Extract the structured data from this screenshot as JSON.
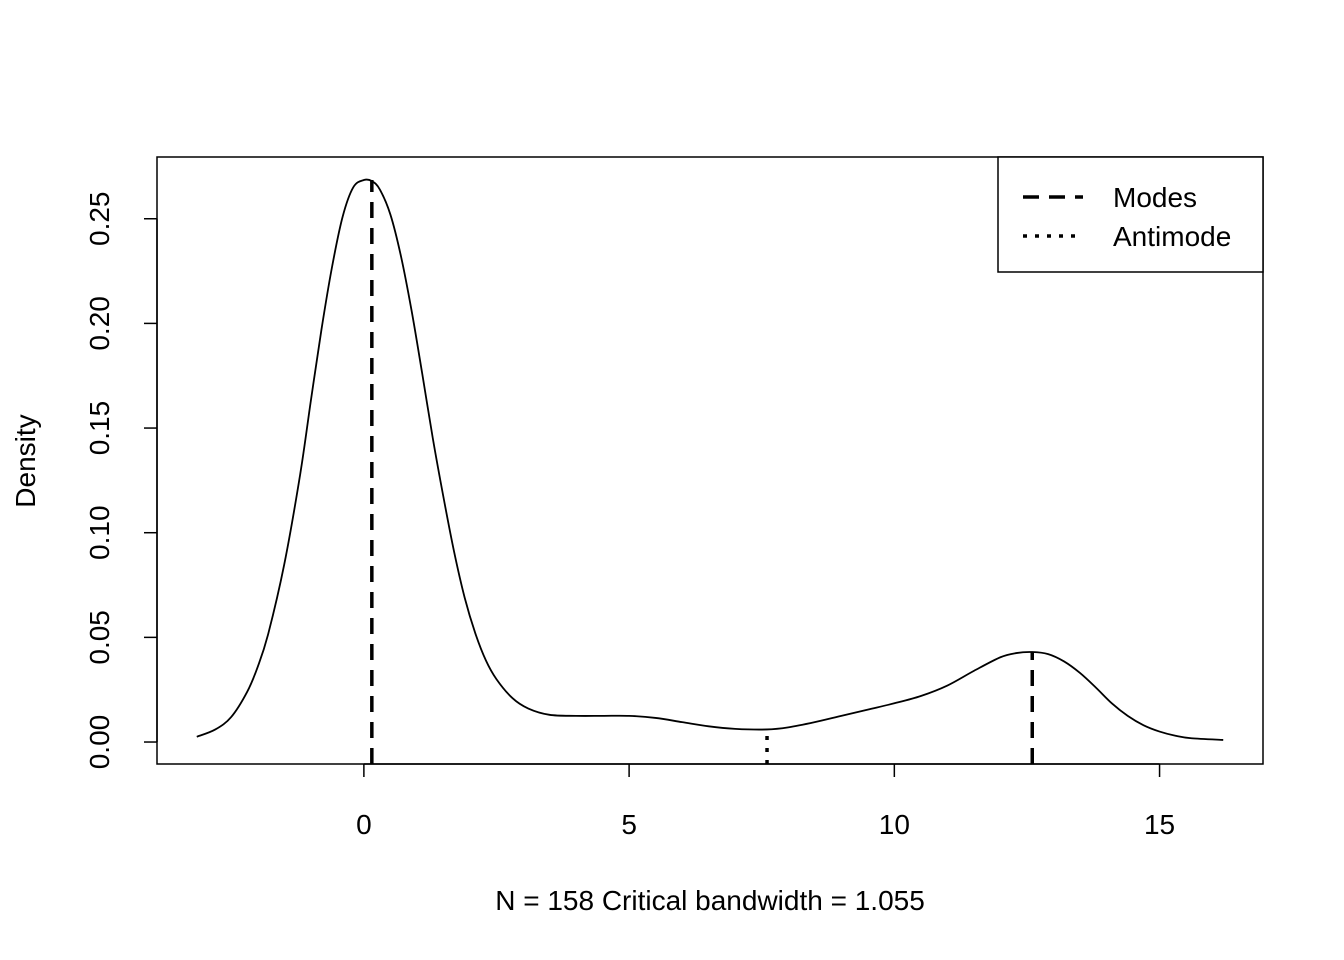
{
  "chart_data": {
    "type": "line",
    "title": "",
    "xlabel": "N =  158  Critical bandwidth =  1.055",
    "ylabel": "Density",
    "xlim": [
      -3.9,
      16.95
    ],
    "ylim": [
      -0.0105,
      0.2795
    ],
    "x_ticks": [
      0,
      5,
      10,
      15
    ],
    "x_tick_labels": [
      "0",
      "5",
      "10",
      "15"
    ],
    "y_ticks": [
      0.0,
      0.05,
      0.1,
      0.15,
      0.2,
      0.25
    ],
    "y_tick_labels": [
      "0.00",
      "0.05",
      "0.10",
      "0.15",
      "0.20",
      "0.25"
    ],
    "grid": false,
    "legend": {
      "position": "top-right",
      "entries": [
        {
          "label": "Modes",
          "line_style": "dashed"
        },
        {
          "label": "Antimode",
          "line_style": "dotted"
        }
      ]
    },
    "series": [
      {
        "style": "solid",
        "color": "#000000",
        "x": [
          -3.15,
          -2.8,
          -2.5,
          -2.2,
          -2.0,
          -1.8,
          -1.5,
          -1.2,
          -1.0,
          -0.8,
          -0.6,
          -0.4,
          -0.2,
          0.0,
          0.15,
          0.3,
          0.5,
          0.7,
          0.9,
          1.1,
          1.3,
          1.5,
          1.7,
          1.9,
          2.1,
          2.3,
          2.5,
          2.8,
          3.1,
          3.5,
          4.0,
          4.5,
          5.0,
          5.5,
          6.0,
          6.5,
          7.0,
          7.6,
          8.0,
          8.5,
          9.0,
          9.5,
          10.0,
          10.5,
          11.0,
          11.5,
          12.0,
          12.3,
          12.6,
          12.9,
          13.2,
          13.5,
          13.8,
          14.1,
          14.4,
          14.7,
          15.0,
          15.3,
          15.6,
          16.2
        ],
        "y": [
          0.0025,
          0.006,
          0.012,
          0.024,
          0.036,
          0.052,
          0.085,
          0.128,
          0.163,
          0.197,
          0.227,
          0.251,
          0.265,
          0.2685,
          0.268,
          0.264,
          0.252,
          0.232,
          0.206,
          0.176,
          0.145,
          0.117,
          0.091,
          0.069,
          0.052,
          0.039,
          0.03,
          0.021,
          0.016,
          0.013,
          0.0125,
          0.0125,
          0.0125,
          0.0115,
          0.0095,
          0.0075,
          0.0063,
          0.006,
          0.007,
          0.0095,
          0.0125,
          0.0155,
          0.0185,
          0.022,
          0.027,
          0.034,
          0.0405,
          0.0425,
          0.043,
          0.042,
          0.0385,
          0.033,
          0.026,
          0.0185,
          0.0125,
          0.008,
          0.005,
          0.003,
          0.0018,
          0.001
        ]
      }
    ],
    "vlines": [
      {
        "kind": "mode",
        "x": 0.15,
        "y": 0.2685,
        "style": "dashed"
      },
      {
        "kind": "antimode",
        "x": 7.6,
        "y": 0.006,
        "style": "dotted"
      },
      {
        "kind": "mode",
        "x": 12.6,
        "y": 0.043,
        "style": "dashed"
      }
    ]
  }
}
